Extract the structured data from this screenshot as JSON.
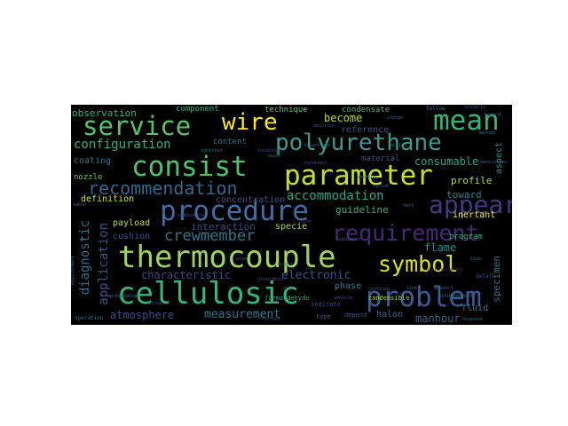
{
  "words": [
    {
      "text": "thermocouple",
      "color": "#9fd65a"
    },
    {
      "text": "cellulosic",
      "color": "#35b77a"
    },
    {
      "text": "procedure",
      "color": "#3f6ea5"
    },
    {
      "text": "parameter",
      "color": "#c7e020"
    },
    {
      "text": "polyurethane",
      "color": "#3a9a8f"
    },
    {
      "text": "consist",
      "color": "#4ec36b"
    },
    {
      "text": "problem",
      "color": "#3a5d9a"
    },
    {
      "text": "mean",
      "color": "#35b77a"
    },
    {
      "text": "service",
      "color": "#55c667"
    },
    {
      "text": "requirement",
      "color": "#482878"
    },
    {
      "text": "symbol",
      "color": "#d8e219"
    },
    {
      "text": "appear",
      "color": "#443983"
    },
    {
      "text": "recommendation",
      "color": "#31688e"
    },
    {
      "text": "wire",
      "color": "#fde725"
    },
    {
      "text": "crewmember",
      "color": "#2a788e"
    },
    {
      "text": "configuration",
      "color": "#2db27d"
    },
    {
      "text": "accommodation",
      "color": "#22a884"
    },
    {
      "text": "measurement",
      "color": "#2a788e"
    },
    {
      "text": "application",
      "color": "#3b528b"
    },
    {
      "text": "diagnostic",
      "color": "#2c728e"
    },
    {
      "text": "characteristic",
      "color": "#414487"
    },
    {
      "text": "atmosphere",
      "color": "#3e4c8a"
    },
    {
      "text": "electronic",
      "color": "#3b528b"
    },
    {
      "text": "observation",
      "color": "#2db27d"
    },
    {
      "text": "become",
      "color": "#b5de2b"
    },
    {
      "text": "consumable",
      "color": "#22a884"
    },
    {
      "text": "interaction",
      "color": "#3e4c8a"
    },
    {
      "text": "manhour",
      "color": "#31688e"
    },
    {
      "text": "flame",
      "color": "#21918c"
    },
    {
      "text": "coating",
      "color": "#2a788e"
    },
    {
      "text": "reference",
      "color": "#3b528b"
    },
    {
      "text": "toward",
      "color": "#26828e"
    },
    {
      "text": "guideline",
      "color": "#2db27d"
    },
    {
      "text": "profile",
      "color": "#b5de2b"
    },
    {
      "text": "specimen",
      "color": "#2c728e"
    },
    {
      "text": "concentration",
      "color": "#3b528b"
    },
    {
      "text": "component",
      "color": "#2db27d"
    },
    {
      "text": "technique",
      "color": "#5ec962"
    },
    {
      "text": "condensate",
      "color": "#35b779"
    },
    {
      "text": "definition",
      "color": "#d8e219"
    },
    {
      "text": "nozzle",
      "color": "#55c667"
    },
    {
      "text": "content",
      "color": "#2c728e"
    },
    {
      "text": "material",
      "color": "#3e4c8a"
    },
    {
      "text": "payload",
      "color": "#bddf26"
    },
    {
      "text": "cushion",
      "color": "#3b528b"
    },
    {
      "text": "specie",
      "color": "#a0da39"
    },
    {
      "text": "phase",
      "color": "#2a788e"
    },
    {
      "text": "halon",
      "color": "#31688e"
    },
    {
      "text": "program",
      "color": "#2db27d"
    },
    {
      "text": "inertant",
      "color": "#fde725"
    },
    {
      "text": "fluid",
      "color": "#2a788e"
    },
    {
      "text": "aspect",
      "color": "#21918c"
    },
    {
      "text": "condensible",
      "color": "#a0da39"
    },
    {
      "text": "formaldehyde",
      "color": "#22a884"
    },
    {
      "text": "indicate",
      "color": "#3e4c8a"
    },
    {
      "text": "type",
      "color": "#3b528b"
    },
    {
      "text": "depend",
      "color": "#3e4c8a"
    },
    {
      "text": "operation",
      "color": "#2a788e"
    },
    {
      "text": "environment",
      "color": "#2c728e"
    },
    {
      "text": "follow",
      "color": "#2a788e"
    },
    {
      "text": "scenario",
      "color": "#3e4c8a"
    },
    {
      "text": "board",
      "color": "#3b528b"
    },
    {
      "text": "detail",
      "color": "#3e4c8a"
    },
    {
      "text": "distinguishant",
      "color": "#482878"
    },
    {
      "text": "insulation",
      "color": "#3b528b"
    },
    {
      "text": "effect",
      "color": "#3b528b"
    },
    {
      "text": "line",
      "color": "#2a788e"
    },
    {
      "text": "represent",
      "color": "#3e4c8a"
    },
    {
      "text": "continue",
      "color": "#3b528b"
    },
    {
      "text": "design",
      "color": "#3e4c8a"
    },
    {
      "text": "table",
      "color": "#2c728e"
    },
    {
      "text": "illustrate",
      "color": "#2a788e"
    },
    {
      "text": "change",
      "color": "#3b528b"
    },
    {
      "text": "part",
      "color": "#3e4c8a"
    },
    {
      "text": "occur",
      "color": "#2a788e"
    },
    {
      "text": "describe",
      "color": "#3e4c8a"
    },
    {
      "text": "section",
      "color": "#2a788e"
    },
    {
      "text": "product",
      "color": "#3b528b"
    },
    {
      "text": "size",
      "color": "#2c728e"
    },
    {
      "text": "area",
      "color": "#3b528b"
    },
    {
      "text": "ignition",
      "color": "#2a788e"
    },
    {
      "text": "location",
      "color": "#3e4c8a"
    },
    {
      "text": "system",
      "color": "#3b528b"
    },
    {
      "text": "proceeding",
      "color": "#2a788e"
    },
    {
      "text": "method",
      "color": "#2c728e"
    },
    {
      "text": "fire",
      "color": "#3e4c8a"
    },
    {
      "text": "combustion",
      "color": "#3b528b"
    },
    {
      "text": "test",
      "color": "#2a788e"
    },
    {
      "text": "temperature",
      "color": "#3e4c8a"
    },
    {
      "text": "result",
      "color": "#3b528b"
    },
    {
      "text": "extinguishant",
      "color": "#2a788e"
    },
    {
      "text": "response",
      "color": "#2c728e"
    },
    {
      "text": "vehicle",
      "color": "#3e4c8a"
    },
    {
      "text": "equipment",
      "color": "#3b528b"
    },
    {
      "text": "action",
      "color": "#2a788e"
    }
  ]
}
